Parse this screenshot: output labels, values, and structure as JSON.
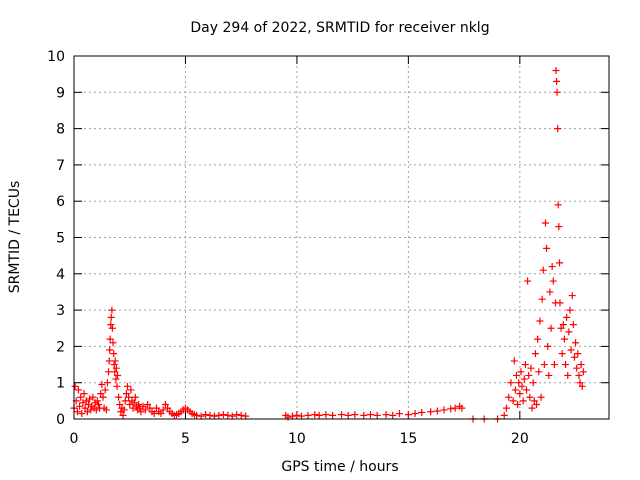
{
  "chart_data": {
    "type": "scatter",
    "title": "Day 294 of 2022, SRMTID for receiver nklg",
    "xlabel": "GPS time / hours",
    "ylabel": "SRMTID / TECUs",
    "xlim": [
      0,
      24
    ],
    "ylim": [
      0,
      10
    ],
    "xticks": [
      0,
      5,
      10,
      15,
      20
    ],
    "yticks": [
      0,
      1,
      2,
      3,
      4,
      5,
      6,
      7,
      8,
      9,
      10
    ],
    "grid": true,
    "marker": "+",
    "marker_color": "#ff0000",
    "series": [
      {
        "name": "SRMTID",
        "points": [
          [
            0.0,
            0.3
          ],
          [
            0.05,
            0.9
          ],
          [
            0.1,
            0.5
          ],
          [
            0.15,
            0.2
          ],
          [
            0.2,
            0.8
          ],
          [
            0.25,
            0.35
          ],
          [
            0.3,
            0.6
          ],
          [
            0.35,
            0.15
          ],
          [
            0.4,
            0.45
          ],
          [
            0.45,
            0.7
          ],
          [
            0.5,
            0.3
          ],
          [
            0.55,
            0.5
          ],
          [
            0.6,
            0.2
          ],
          [
            0.65,
            0.4
          ],
          [
            0.7,
            0.55
          ],
          [
            0.75,
            0.25
          ],
          [
            0.8,
            0.35
          ],
          [
            0.85,
            0.6
          ],
          [
            0.9,
            0.3
          ],
          [
            0.95,
            0.45
          ],
          [
            1.0,
            0.25
          ],
          [
            1.05,
            0.5
          ],
          [
            1.1,
            0.4
          ],
          [
            1.15,
            0.3
          ],
          [
            1.2,
            0.7
          ],
          [
            1.25,
            0.95
          ],
          [
            1.3,
            0.6
          ],
          [
            1.35,
            0.3
          ],
          [
            1.4,
            0.8
          ],
          [
            1.45,
            0.25
          ],
          [
            1.5,
            1.0
          ],
          [
            1.55,
            1.3
          ],
          [
            1.58,
            1.6
          ],
          [
            1.6,
            1.9
          ],
          [
            1.62,
            2.2
          ],
          [
            1.65,
            2.6
          ],
          [
            1.67,
            2.8
          ],
          [
            1.7,
            3.0
          ],
          [
            1.72,
            2.5
          ],
          [
            1.75,
            2.1
          ],
          [
            1.78,
            1.8
          ],
          [
            1.8,
            1.5
          ],
          [
            1.83,
            1.3
          ],
          [
            1.85,
            1.6
          ],
          [
            1.88,
            1.1
          ],
          [
            1.9,
            1.4
          ],
          [
            1.93,
            0.9
          ],
          [
            1.95,
            1.2
          ],
          [
            2.0,
            0.6
          ],
          [
            2.05,
            0.4
          ],
          [
            2.1,
            0.2
          ],
          [
            2.15,
            0.3
          ],
          [
            2.2,
            0.1
          ],
          [
            2.25,
            0.25
          ],
          [
            2.3,
            0.5
          ],
          [
            2.35,
            0.7
          ],
          [
            2.4,
            0.9
          ],
          [
            2.45,
            0.6
          ],
          [
            2.5,
            0.4
          ],
          [
            2.55,
            0.8
          ],
          [
            2.6,
            0.5
          ],
          [
            2.65,
            0.3
          ],
          [
            2.7,
            0.45
          ],
          [
            2.75,
            0.6
          ],
          [
            2.8,
            0.35
          ],
          [
            2.85,
            0.25
          ],
          [
            2.9,
            0.4
          ],
          [
            2.95,
            0.3
          ],
          [
            3.0,
            0.2
          ],
          [
            3.1,
            0.35
          ],
          [
            3.2,
            0.25
          ],
          [
            3.3,
            0.4
          ],
          [
            3.4,
            0.3
          ],
          [
            3.5,
            0.2
          ],
          [
            3.6,
            0.15
          ],
          [
            3.7,
            0.3
          ],
          [
            3.8,
            0.2
          ],
          [
            3.9,
            0.15
          ],
          [
            4.0,
            0.25
          ],
          [
            4.1,
            0.4
          ],
          [
            4.2,
            0.3
          ],
          [
            4.3,
            0.2
          ],
          [
            4.4,
            0.15
          ],
          [
            4.5,
            0.1
          ],
          [
            4.6,
            0.12
          ],
          [
            4.7,
            0.15
          ],
          [
            4.8,
            0.2
          ],
          [
            4.9,
            0.25
          ],
          [
            5.0,
            0.3
          ],
          [
            5.1,
            0.25
          ],
          [
            5.2,
            0.2
          ],
          [
            5.3,
            0.15
          ],
          [
            5.4,
            0.12
          ],
          [
            5.5,
            0.1
          ],
          [
            5.7,
            0.08
          ],
          [
            5.9,
            0.12
          ],
          [
            6.1,
            0.1
          ],
          [
            6.3,
            0.08
          ],
          [
            6.5,
            0.1
          ],
          [
            6.7,
            0.12
          ],
          [
            6.9,
            0.1
          ],
          [
            7.1,
            0.08
          ],
          [
            7.3,
            0.12
          ],
          [
            7.5,
            0.1
          ],
          [
            7.7,
            0.08
          ],
          [
            9.5,
            0.1
          ],
          [
            9.6,
            0.05
          ],
          [
            9.8,
            0.08
          ],
          [
            10.0,
            0.1
          ],
          [
            10.2,
            0.08
          ],
          [
            10.5,
            0.1
          ],
          [
            10.8,
            0.12
          ],
          [
            11.0,
            0.1
          ],
          [
            11.3,
            0.12
          ],
          [
            11.6,
            0.1
          ],
          [
            12.0,
            0.12
          ],
          [
            12.3,
            0.1
          ],
          [
            12.6,
            0.12
          ],
          [
            13.0,
            0.1
          ],
          [
            13.3,
            0.12
          ],
          [
            13.6,
            0.1
          ],
          [
            14.0,
            0.12
          ],
          [
            14.3,
            0.1
          ],
          [
            14.6,
            0.15
          ],
          [
            15.0,
            0.12
          ],
          [
            15.3,
            0.15
          ],
          [
            15.6,
            0.18
          ],
          [
            16.0,
            0.2
          ],
          [
            16.3,
            0.22
          ],
          [
            16.6,
            0.25
          ],
          [
            16.9,
            0.28
          ],
          [
            17.1,
            0.3
          ],
          [
            17.3,
            0.35
          ],
          [
            17.4,
            0.3
          ],
          [
            17.9,
            0.0
          ],
          [
            18.4,
            0.0
          ],
          [
            19.0,
            0.0
          ],
          [
            19.3,
            0.1
          ],
          [
            19.4,
            0.3
          ],
          [
            19.5,
            0.6
          ],
          [
            19.6,
            1.0
          ],
          [
            19.7,
            0.5
          ],
          [
            19.75,
            1.6
          ],
          [
            19.8,
            0.8
          ],
          [
            19.85,
            1.2
          ],
          [
            19.9,
            0.4
          ],
          [
            19.95,
            1.0
          ],
          [
            20.0,
            0.7
          ],
          [
            20.05,
            1.3
          ],
          [
            20.1,
            0.9
          ],
          [
            20.15,
            0.5
          ],
          [
            20.2,
            1.1
          ],
          [
            20.25,
            1.5
          ],
          [
            20.3,
            0.8
          ],
          [
            20.35,
            3.8
          ],
          [
            20.4,
            1.2
          ],
          [
            20.45,
            0.6
          ],
          [
            20.5,
            1.4
          ],
          [
            20.55,
            0.3
          ],
          [
            20.6,
            1.0
          ],
          [
            20.65,
            0.5
          ],
          [
            20.7,
            1.8
          ],
          [
            20.75,
            0.4
          ],
          [
            20.8,
            2.2
          ],
          [
            20.85,
            1.3
          ],
          [
            20.9,
            2.7
          ],
          [
            20.95,
            0.6
          ],
          [
            21.0,
            3.3
          ],
          [
            21.05,
            4.1
          ],
          [
            21.1,
            1.5
          ],
          [
            21.15,
            5.4
          ],
          [
            21.2,
            4.7
          ],
          [
            21.25,
            2.0
          ],
          [
            21.3,
            1.2
          ],
          [
            21.35,
            3.5
          ],
          [
            21.4,
            2.5
          ],
          [
            21.45,
            4.2
          ],
          [
            21.5,
            3.8
          ],
          [
            21.55,
            1.5
          ],
          [
            21.6,
            3.2
          ],
          [
            21.62,
            9.6
          ],
          [
            21.65,
            9.3
          ],
          [
            21.67,
            9.0
          ],
          [
            21.7,
            8.0
          ],
          [
            21.72,
            5.9
          ],
          [
            21.75,
            5.3
          ],
          [
            21.78,
            4.3
          ],
          [
            21.8,
            3.2
          ],
          [
            21.85,
            2.5
          ],
          [
            21.9,
            1.8
          ],
          [
            21.95,
            2.6
          ],
          [
            22.0,
            2.2
          ],
          [
            22.05,
            1.5
          ],
          [
            22.1,
            2.8
          ],
          [
            22.15,
            1.2
          ],
          [
            22.2,
            2.4
          ],
          [
            22.25,
            3.0
          ],
          [
            22.3,
            1.9
          ],
          [
            22.35,
            3.4
          ],
          [
            22.4,
            2.6
          ],
          [
            22.45,
            1.7
          ],
          [
            22.5,
            2.1
          ],
          [
            22.55,
            1.4
          ],
          [
            22.6,
            1.8
          ],
          [
            22.65,
            1.2
          ],
          [
            22.7,
            1.0
          ],
          [
            22.75,
            1.5
          ],
          [
            22.8,
            0.9
          ],
          [
            22.85,
            1.3
          ]
        ]
      }
    ]
  }
}
